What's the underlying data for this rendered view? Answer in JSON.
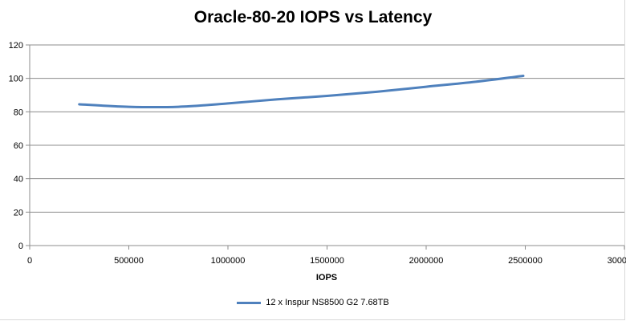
{
  "chart_data": {
    "type": "line",
    "title": "Oracle-80-20 IOPS vs Latency",
    "xlabel": "IOPS",
    "ylabel": "",
    "xlim": [
      0,
      3000000
    ],
    "ylim": [
      0,
      120
    ],
    "x_ticks": [
      "0",
      "500000",
      "1000000",
      "1500000",
      "2000000",
      "2500000",
      "3000000"
    ],
    "y_ticks": [
      "0",
      "20",
      "40",
      "60",
      "80",
      "100",
      "120"
    ],
    "grid": "horizontal",
    "legend_position": "bottom",
    "series": [
      {
        "name": "12 x Inspur NS8500 G2 7.68TB",
        "color": "#4f81bd",
        "x": [
          250000,
          500000,
          750000,
          1000000,
          1250000,
          1500000,
          1750000,
          2000000,
          2250000,
          2490000
        ],
        "y": [
          84.5,
          83.0,
          83.0,
          85.0,
          87.5,
          89.5,
          92.0,
          95.0,
          98.0,
          101.5
        ]
      }
    ]
  }
}
